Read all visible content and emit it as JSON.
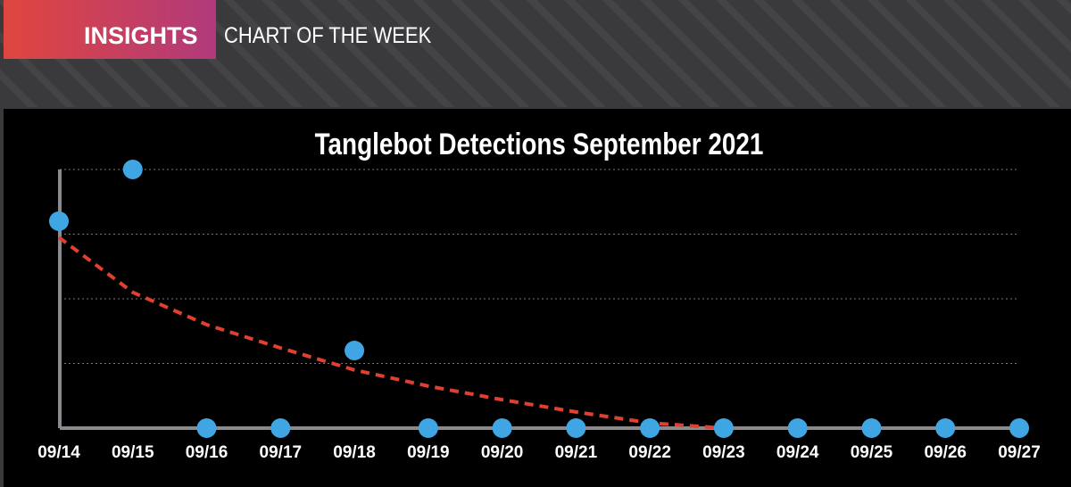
{
  "header": {
    "tag": "INSIGHTS",
    "title": "CHART OF THE WEEK"
  },
  "chart_data": {
    "type": "scatter",
    "title": "Tanglebot Detections September 2021",
    "categories": [
      "09/14",
      "09/15",
      "09/16",
      "09/17",
      "09/18",
      "09/19",
      "09/20",
      "09/21",
      "09/22",
      "09/23",
      "09/24",
      "09/25",
      "09/26",
      "09/27"
    ],
    "series": [
      {
        "color": "#3fa6e3",
        "values": [
          3.2,
          4.0,
          0,
          0,
          1.2,
          0,
          0,
          0,
          0,
          0,
          0,
          0,
          0,
          0
        ]
      }
    ],
    "trendline": {
      "color": "#e0402f",
      "values": [
        2.95,
        2.1,
        1.6,
        1.24,
        0.9,
        0.65,
        0.44,
        0.25,
        0.08,
        0,
        null,
        null,
        null,
        null
      ]
    },
    "ylim": [
      0,
      4
    ],
    "grid_lines": [
      1,
      2,
      3,
      4
    ],
    "grid": true
  }
}
